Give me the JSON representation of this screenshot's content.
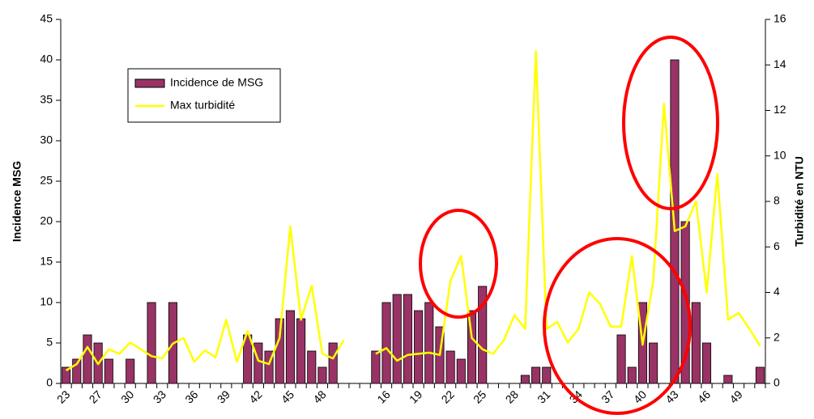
{
  "chart_data": {
    "type": "bar_line",
    "categories": [
      "23",
      null,
      null,
      "27",
      null,
      null,
      "30",
      null,
      null,
      "33",
      null,
      null,
      "36",
      null,
      null,
      "39",
      null,
      null,
      "42",
      null,
      null,
      "45",
      null,
      null,
      "48",
      null,
      null,
      null,
      null,
      null,
      "16",
      null,
      null,
      "19",
      null,
      null,
      "22",
      null,
      null,
      "25",
      null,
      null,
      "28",
      null,
      null,
      "31",
      null,
      null,
      "34",
      null,
      null,
      "37",
      null,
      null,
      "40",
      null,
      null,
      "43",
      null,
      null,
      "46",
      null,
      null,
      "49",
      null,
      null
    ],
    "series": [
      {
        "name": "Incidence de MSG",
        "type": "bar",
        "color": "#993366",
        "axis": "y",
        "values": [
          2,
          3,
          6,
          5,
          3,
          0,
          3,
          0,
          10,
          0,
          10,
          0,
          0,
          0,
          0,
          0,
          0,
          6,
          5,
          4,
          8,
          9,
          8,
          4,
          2,
          5,
          0,
          0,
          null,
          4,
          10,
          11,
          11,
          9,
          10,
          7,
          4,
          3,
          9,
          12,
          0,
          0,
          0,
          1,
          2,
          2,
          0,
          0,
          0,
          0,
          0,
          0,
          6,
          2,
          10,
          5,
          0,
          40,
          20,
          10,
          5,
          0,
          1,
          0,
          0,
          2
        ]
      },
      {
        "name": "Max turbidité",
        "type": "line",
        "color": "#ffff00",
        "axis": "y2",
        "values": [
          0.57,
          0.85,
          1.6,
          0.85,
          1.5,
          1.3,
          1.8,
          1.5,
          1.2,
          1.1,
          1.75,
          2.0,
          0.95,
          1.45,
          1.15,
          2.8,
          0.95,
          2.3,
          1.0,
          0.85,
          2.0,
          6.9,
          2.8,
          4.3,
          1.3,
          1.1,
          1.9,
          null,
          null,
          1.3,
          1.55,
          1.0,
          1.25,
          1.3,
          1.35,
          1.25,
          4.5,
          5.6,
          2.0,
          1.5,
          1.3,
          1.9,
          3.0,
          2.4,
          14.6,
          2.4,
          2.7,
          1.8,
          2.4,
          4.0,
          3.5,
          2.5,
          2.5,
          5.6,
          1.7,
          4.5,
          12.3,
          6.7,
          6.9,
          8.0,
          4.0,
          9.2,
          2.8,
          3.1,
          2.4,
          1.65
        ]
      }
    ],
    "ylabel": "Incidence MSG",
    "y2label": "Turbidité en NTU",
    "ylim": [
      0,
      45
    ],
    "yticks": [
      0,
      5,
      10,
      15,
      20,
      25,
      30,
      35,
      40,
      45
    ],
    "y2lim": [
      0,
      16
    ],
    "y2ticks": [
      0,
      2,
      4,
      6,
      8,
      10,
      12,
      14,
      16
    ],
    "legend": "upper left"
  }
}
